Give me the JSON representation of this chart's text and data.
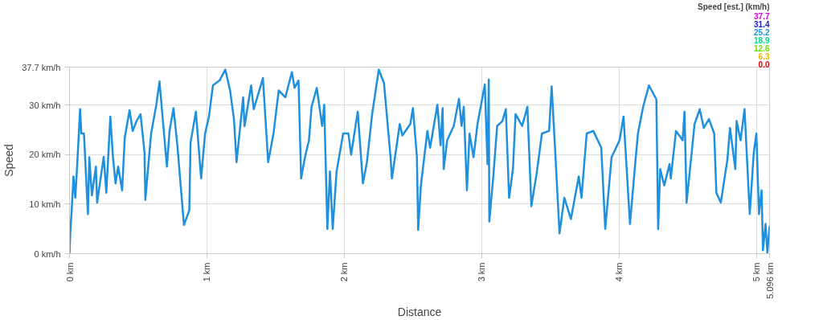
{
  "chart_data": {
    "type": "line",
    "xlabel": "Distance",
    "ylabel": "Speed",
    "clabel": "Speed [est.] (km/h)",
    "annotations": [
      "37.7",
      "31.4",
      "25.2",
      "18.9",
      "12.6",
      "6.3",
      "0.0"
    ],
    "xlim": [
      0,
      5.096
    ],
    "ylim": [
      0,
      37.7
    ],
    "xticks": [
      {
        "value": 0,
        "label": "0 km"
      },
      {
        "value": 1,
        "label": "1 km"
      },
      {
        "value": 2,
        "label": "2 km"
      },
      {
        "value": 3,
        "label": "3 km"
      },
      {
        "value": 4,
        "label": "4 km"
      },
      {
        "value": 5,
        "label": "5 km"
      },
      {
        "value": 5.096,
        "label": "5.096 km"
      }
    ],
    "yticks": [
      {
        "value": 0,
        "label": "0 km/h"
      },
      {
        "value": 10,
        "label": "10 km/h"
      },
      {
        "value": 20,
        "label": "20 km/h"
      },
      {
        "value": 30,
        "label": "30 km/h"
      },
      {
        "value": 37.7,
        "label": "37.7 km/h"
      }
    ],
    "grid": true,
    "line_style": "solid",
    "series": [
      {
        "color": "#1e90dd",
        "x": [
          0.0,
          0.006,
          0.015,
          0.029,
          0.042,
          0.057,
          0.077,
          0.086,
          0.105,
          0.134,
          0.144,
          0.163,
          0.192,
          0.201,
          0.249,
          0.268,
          0.297,
          0.316,
          0.335,
          0.354,
          0.383,
          0.402,
          0.437,
          0.46,
          0.488,
          0.517,
          0.546,
          0.552,
          0.594,
          0.632,
          0.655,
          0.68,
          0.709,
          0.728,
          0.757,
          0.785,
          0.833,
          0.872,
          0.881,
          0.92,
          0.958,
          0.987,
          1.015,
          1.044,
          1.092,
          1.134,
          1.169,
          1.197,
          1.216,
          1.264,
          1.274,
          1.322,
          1.341,
          1.408,
          1.446,
          1.485,
          1.523,
          1.571,
          1.619,
          1.638,
          1.667,
          1.686,
          1.714,
          1.743,
          1.762,
          1.8,
          1.839,
          1.854,
          1.877,
          1.896,
          1.916,
          1.944,
          1.992,
          2.03,
          2.05,
          2.098,
          2.136,
          2.165,
          2.203,
          2.251,
          2.289,
          2.337,
          2.347,
          2.404,
          2.423,
          2.481,
          2.5,
          2.529,
          2.538,
          2.558,
          2.605,
          2.625,
          2.678,
          2.701,
          2.716,
          2.724,
          2.749,
          2.797,
          2.835,
          2.854,
          2.87,
          2.893,
          2.912,
          2.941,
          2.97,
          3.023,
          3.043,
          3.052,
          3.056,
          3.085,
          3.113,
          3.151,
          3.176,
          3.2,
          3.228,
          3.247,
          3.295,
          3.333,
          3.362,
          3.4,
          3.439,
          3.491,
          3.51,
          3.535,
          3.567,
          3.602,
          3.65,
          3.707,
          3.727,
          3.765,
          3.813,
          3.871,
          3.9,
          3.946,
          4.004,
          4.033,
          4.08,
          4.119,
          4.138,
          4.176,
          4.218,
          4.272,
          4.285,
          4.3,
          4.329,
          4.368,
          4.377,
          4.415,
          4.463,
          4.477,
          4.492,
          4.55,
          4.588,
          4.617,
          4.655,
          4.693,
          4.709,
          4.741,
          4.789,
          4.808,
          4.847,
          4.856,
          4.885,
          4.914,
          4.952,
          4.981,
          5.0,
          5.019,
          5.038,
          5.048,
          5.067,
          5.08,
          5.096
        ],
        "values": [
          0,
          4.5,
          8.4,
          15.6,
          11.3,
          18.5,
          29.2,
          24.3,
          24.3,
          8,
          19.5,
          11.8,
          17.6,
          10.3,
          19.6,
          12.3,
          27.7,
          19.6,
          14.2,
          17.6,
          12.8,
          23.4,
          29,
          24.8,
          26.8,
          28.2,
          20.4,
          10.9,
          24.3,
          30.1,
          34.8,
          26.8,
          17.6,
          24.8,
          29.4,
          21.9,
          5.8,
          8.8,
          22.4,
          28.7,
          15.2,
          24.3,
          27.7,
          34,
          35,
          37.2,
          33,
          27.2,
          18.5,
          31.6,
          25.8,
          34,
          29.2,
          35.5,
          18.5,
          24.3,
          33,
          31.6,
          36.7,
          33.5,
          35,
          15.2,
          19.5,
          22.9,
          29.7,
          33.5,
          25.8,
          30.1,
          5,
          16.6,
          5,
          16.6,
          24.3,
          24.3,
          20,
          28.7,
          14.2,
          18.5,
          28.2,
          37.2,
          34.5,
          19.5,
          15.2,
          26.2,
          23.9,
          26.2,
          29.4,
          19.5,
          4.8,
          13.8,
          24.8,
          21.4,
          30.1,
          21.9,
          29.4,
          17.1,
          22.9,
          25.8,
          31.3,
          25.8,
          29.7,
          12.8,
          24.3,
          19.5,
          26.2,
          34.2,
          18.1,
          35.2,
          6.5,
          15.6,
          25.8,
          26.8,
          29.2,
          11.3,
          17.1,
          28.2,
          25.8,
          29.7,
          9.6,
          16.1,
          24.3,
          24.8,
          33.8,
          21,
          4.1,
          11.3,
          7,
          15.6,
          11.3,
          24.3,
          24.8,
          21.4,
          5,
          19.5,
          22.9,
          27.7,
          6,
          18.5,
          24.3,
          29.7,
          34,
          31.2,
          5,
          17.1,
          13.8,
          18.1,
          15.2,
          24.8,
          22.9,
          28.7,
          10.3,
          26.2,
          29.2,
          25.4,
          27.2,
          24.3,
          12.3,
          10.3,
          19,
          25.4,
          17.1,
          26.8,
          22.9,
          29.2,
          8,
          20.4,
          24.3,
          8,
          12.8,
          0.7,
          6,
          0.2,
          5.5
        ]
      }
    ]
  }
}
